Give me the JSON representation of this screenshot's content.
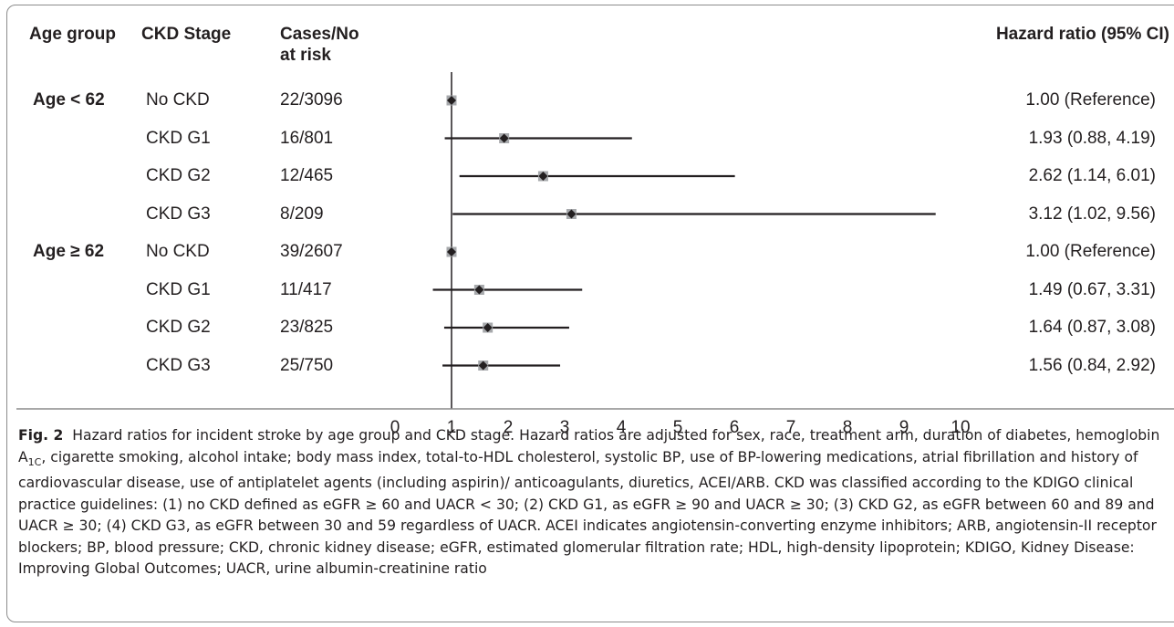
{
  "headers": {
    "age_group": "Age group",
    "ckd_stage": "CKD Stage",
    "cases_line1": "Cases/No",
    "cases_line2": "at risk",
    "hazard_ratio": "Hazard ratio (95% CI)"
  },
  "chart_data": {
    "type": "forest",
    "xlim": [
      0,
      10
    ],
    "x_ticks": [
      "0",
      "1",
      "2",
      "3",
      "4",
      "5",
      "6",
      "7",
      "8",
      "9",
      "10"
    ],
    "reference_line": 1,
    "rows": [
      {
        "group": "Age < 62",
        "stage": "No CKD",
        "cases": "22/3096",
        "hr": 1.0,
        "lo": 1.0,
        "hi": 1.0,
        "label": "1.00 (Reference)"
      },
      {
        "group": "",
        "stage": "CKD G1",
        "cases": "16/801",
        "hr": 1.93,
        "lo": 0.88,
        "hi": 4.19,
        "label": "1.93 (0.88, 4.19)"
      },
      {
        "group": "",
        "stage": "CKD G2",
        "cases": "12/465",
        "hr": 2.62,
        "lo": 1.14,
        "hi": 6.01,
        "label": "2.62 (1.14, 6.01)"
      },
      {
        "group": "",
        "stage": "CKD G3",
        "cases": "8/209",
        "hr": 3.12,
        "lo": 1.02,
        "hi": 9.56,
        "label": "3.12 (1.02, 9.56)"
      },
      {
        "group": "Age ≥ 62",
        "stage": "No CKD",
        "cases": "39/2607",
        "hr": 1.0,
        "lo": 1.0,
        "hi": 1.0,
        "label": "1.00 (Reference)"
      },
      {
        "group": "",
        "stage": "CKD G1",
        "cases": "11/417",
        "hr": 1.49,
        "lo": 0.67,
        "hi": 3.31,
        "label": "1.49 (0.67, 3.31)"
      },
      {
        "group": "",
        "stage": "CKD G2",
        "cases": "23/825",
        "hr": 1.64,
        "lo": 0.87,
        "hi": 3.08,
        "label": "1.64 (0.87, 3.08)"
      },
      {
        "group": "",
        "stage": "CKD G3",
        "cases": "25/750",
        "hr": 1.56,
        "lo": 0.84,
        "hi": 2.92,
        "label": "1.56 (0.84, 2.92)"
      }
    ]
  },
  "caption": {
    "label": "Fig. 2",
    "text": "Hazard ratios for incident stroke by age group and CKD stage. Hazard ratios are adjusted for sex, race, treatment arm, duration of diabetes, hemoglobin A1C, cigarette smoking, alcohol intake; body mass index, total-to-HDL cholesterol, systolic BP, use of BP-lowering medications, atrial fibrillation and history of cardiovascular disease, use of antiplatelet agents (including aspirin)/ anticoagulants, diuretics, ACEI/ARB. CKD was classified according to the KDIGO clinical practice guidelines: (1) no CKD defined as eGFR ≥ 60 and UACR < 30; (2) CKD G1, as eGFR ≥ 90 and UACR ≥ 30; (3) CKD G2, as eGFR between 60 and 89 and UACR ≥ 30; (4) CKD G3, as eGFR between 30 and 59 regardless of UACR. ACEI indicates angiotensin-converting enzyme inhibitors; ARB, angiotensin-II receptor blockers; BP, blood pressure; CKD, chronic kidney disease; eGFR, estimated glomerular filtration rate; HDL, high-density lipoprotein; KDIGO, Kidney Disease: Improving Global Outcomes; UACR, urine albumin-creatinine ratio"
  }
}
